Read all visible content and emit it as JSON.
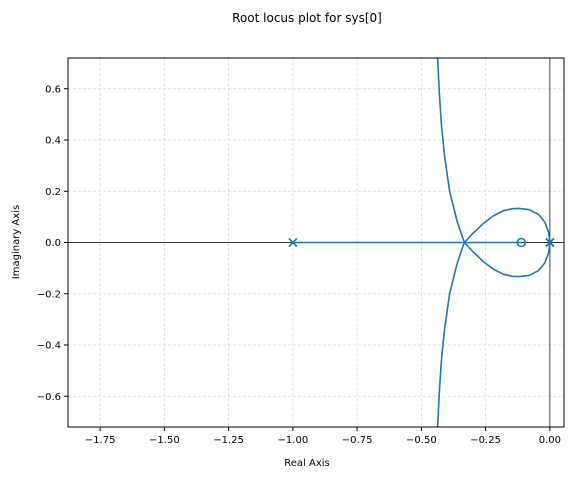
{
  "chart_data": {
    "type": "line",
    "title": "Root locus plot for sys[0]",
    "xlabel": "Real Axis",
    "ylabel": "Imaginary Axis",
    "xlim": [
      -1.875,
      0.055
    ],
    "ylim": [
      -0.72,
      0.72
    ],
    "xticks": [
      -1.75,
      -1.5,
      -1.25,
      -1.0,
      -0.75,
      -0.5,
      -0.25,
      0.0
    ],
    "xtick_labels": [
      "−1.75",
      "−1.50",
      "−1.25",
      "−1.00",
      "−0.75",
      "−0.50",
      "−0.25",
      "0.00"
    ],
    "yticks": [
      -0.6,
      -0.4,
      -0.2,
      0.0,
      0.2,
      0.4,
      0.6
    ],
    "ytick_labels": [
      "−0.6",
      "−0.4",
      "−0.2",
      "0.0",
      "0.2",
      "0.4",
      "0.6"
    ],
    "grid": true,
    "poles": [
      [
        -1.0,
        0.0
      ],
      [
        0.0,
        0.0
      ],
      [
        0.0,
        0.0
      ]
    ],
    "zeros": [
      [
        -0.111,
        0.0
      ]
    ],
    "branch_color": "#1f77b4",
    "series": [
      {
        "x": [
          -1.0,
          -0.95,
          -0.9,
          -0.85,
          -0.8,
          -0.75,
          -0.7,
          -0.65,
          -0.6,
          -0.55,
          -0.5,
          -0.45,
          -0.4,
          -0.35,
          -0.333
        ],
        "y": [
          0,
          0,
          0,
          0,
          0,
          0,
          0,
          0,
          0,
          0,
          0,
          0,
          0,
          0,
          0
        ]
      },
      {
        "x": [
          -0.111,
          -0.13,
          -0.16,
          -0.2,
          -0.25,
          -0.3,
          -0.333
        ],
        "y": [
          0,
          0,
          0,
          0,
          0,
          0,
          0
        ]
      },
      {
        "x": [
          -0.333,
          -0.36,
          -0.39,
          -0.41,
          -0.422,
          -0.43,
          -0.435,
          -0.438
        ],
        "y": [
          0.0,
          0.08,
          0.2,
          0.34,
          0.46,
          0.58,
          0.68,
          0.75
        ]
      },
      {
        "x": [
          -0.333,
          -0.36,
          -0.39,
          -0.41,
          -0.422,
          -0.43,
          -0.435,
          -0.438
        ],
        "y": [
          0.0,
          -0.08,
          -0.2,
          -0.34,
          -0.46,
          -0.58,
          -0.68,
          -0.75
        ]
      },
      {
        "x": [
          0.0,
          -0.005,
          -0.02,
          -0.045,
          -0.08,
          -0.12,
          -0.145,
          -0.18,
          -0.22,
          -0.26,
          -0.3,
          -0.333
        ],
        "y": [
          0.0,
          0.04,
          0.08,
          0.11,
          0.128,
          0.133,
          0.132,
          0.124,
          0.104,
          0.073,
          0.035,
          0.0
        ]
      },
      {
        "x": [
          0.0,
          -0.005,
          -0.02,
          -0.045,
          -0.08,
          -0.12,
          -0.145,
          -0.18,
          -0.22,
          -0.26,
          -0.3,
          -0.333
        ],
        "y": [
          0.0,
          -0.04,
          -0.08,
          -0.11,
          -0.128,
          -0.133,
          -0.132,
          -0.124,
          -0.104,
          -0.073,
          -0.035,
          0.0
        ]
      }
    ]
  }
}
